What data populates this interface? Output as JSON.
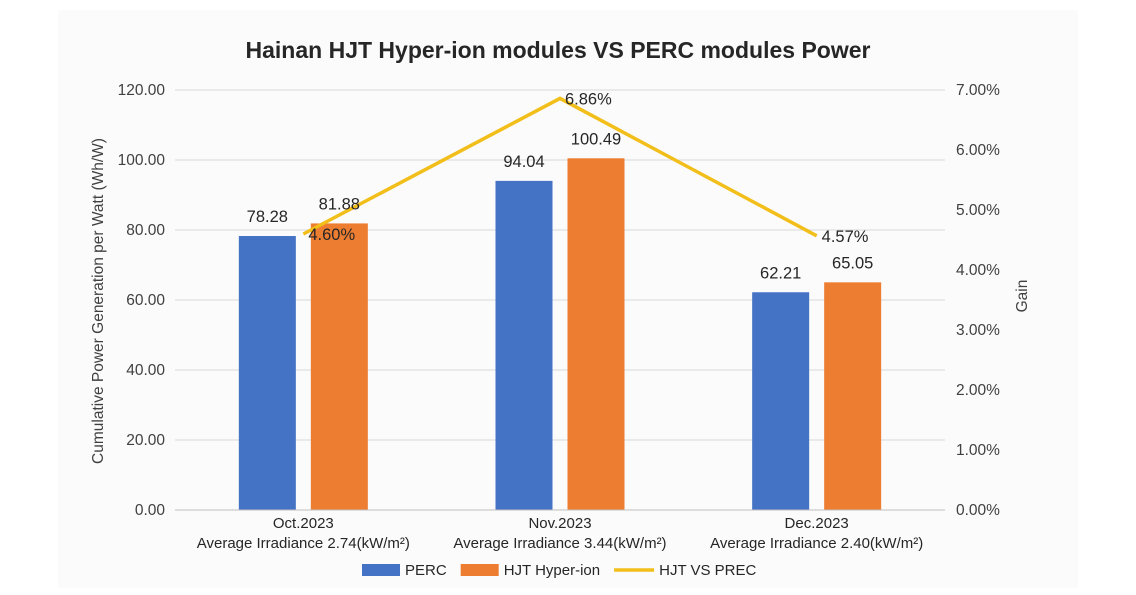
{
  "chart_data": {
    "type": "bar",
    "title": "Hainan HJT Hyper-ion modules VS PERC modules  Power",
    "categories": [
      [
        "Oct.2023",
        "Average Irradiance 2.74(kW/m²)"
      ],
      [
        "Nov.2023",
        "Average Irradiance 3.44(kW/m²)"
      ],
      [
        "Dec.2023",
        "Average Irradiance 2.40(kW/m²)"
      ]
    ],
    "ylabel": "Cumulative Power Generation per Watt  (Wh/W)",
    "y2label": "Gain",
    "ylim": [
      0,
      120
    ],
    "y2lim": [
      0,
      0.07
    ],
    "yticks": [
      "0.00",
      "20.00",
      "40.00",
      "60.00",
      "80.00",
      "100.00",
      "120.00"
    ],
    "y2ticks": [
      "0.00%",
      "1.00%",
      "2.00%",
      "3.00%",
      "4.00%",
      "5.00%",
      "6.00%",
      "7.00%"
    ],
    "grid": true,
    "legend_position": "bottom",
    "series": [
      {
        "name": "PERC",
        "type": "bar",
        "axis": "left",
        "color": "#4472C4",
        "values": [
          78.28,
          94.04,
          62.21
        ],
        "labels": [
          "78.28",
          "94.04",
          "62.21"
        ]
      },
      {
        "name": "HJT Hyper-ion",
        "type": "bar",
        "axis": "left",
        "color": "#ED7D31",
        "values": [
          81.88,
          100.49,
          65.05
        ],
        "labels": [
          "81.88",
          "100.49",
          "65.05"
        ]
      },
      {
        "name": "HJT VS PREC",
        "type": "line",
        "axis": "right",
        "color": "#F2BE1A",
        "values": [
          0.046,
          0.0686,
          0.0457
        ],
        "labels": [
          "4.60%",
          "6.86%",
          "4.57%"
        ]
      }
    ]
  }
}
